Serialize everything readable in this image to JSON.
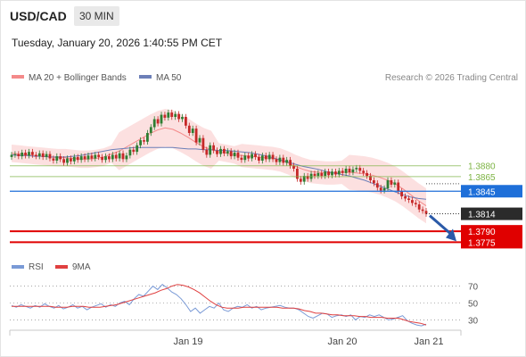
{
  "header": {
    "pair": "USD/CAD",
    "timeframe": "30 MIN",
    "timestamp": "Tuesday, January 20, 2026 1:40:55 PM CET"
  },
  "legend": {
    "ma20": "MA 20 + Bollinger Bands",
    "ma50": "MA 50",
    "source": "Research © 2026 Trading Central"
  },
  "rsi_legend": {
    "rsi": "RSI",
    "ma": "9MA"
  },
  "levels": [
    {
      "value": "1.3880",
      "color": "#7cb342",
      "style": "green-text"
    },
    {
      "value": "1.3865",
      "color": "#7cb342",
      "style": "green-text"
    },
    {
      "value": "1.3845",
      "color": "#1e6fd9",
      "style": "blue-box"
    },
    {
      "value": "1.3814",
      "color": "#2b2b2b",
      "style": "dark-box"
    },
    {
      "value": "1.3790",
      "color": "#e00000",
      "style": "red-box"
    },
    {
      "value": "1.3775",
      "color": "#e00000",
      "style": "red-box"
    }
  ],
  "x_labels": [
    "Jan 19",
    "Jan 20",
    "Jan 21"
  ],
  "rsi_levels": [
    "70",
    "50",
    "30"
  ],
  "colors": {
    "bull": "#2e7d32",
    "bear": "#c62828",
    "ma20": "#f48a8a",
    "ma50": "#6c7fb8",
    "band": "#fbd5d5",
    "arrow": "#2b5aa8",
    "rsi": "#7a9ad6",
    "rsi_ma": "#e04040"
  },
  "chart_data": [
    {
      "type": "candlestick",
      "title": "USD/CAD",
      "timeframe": "30 MIN",
      "ylim": [
        1.3762,
        1.3985
      ],
      "x_ticks": [
        "Jan 19",
        "Jan 20",
        "Jan 21"
      ],
      "series": [
        {
          "name": "USD/CAD",
          "close": [
            1.3895,
            1.3896,
            1.3893,
            1.3898,
            1.3894,
            1.3899,
            1.3895,
            1.3893,
            1.3897,
            1.3892,
            1.3896,
            1.389,
            1.3887,
            1.3893,
            1.3889,
            1.3884,
            1.389,
            1.3886,
            1.3892,
            1.3888,
            1.3893,
            1.3889,
            1.3894,
            1.389,
            1.3895,
            1.3892,
            1.3888,
            1.3893,
            1.3889,
            1.3895,
            1.389,
            1.3897,
            1.3889,
            1.3894,
            1.3902,
            1.3899,
            1.3908,
            1.3915,
            1.3913,
            1.3925,
            1.3933,
            1.3944,
            1.3938,
            1.395,
            1.3946,
            1.3953,
            1.3947,
            1.3951,
            1.3944,
            1.3947,
            1.3935,
            1.3925,
            1.3931,
            1.3912,
            1.3918,
            1.3902,
            1.3895,
            1.3908,
            1.3901,
            1.3896,
            1.3903,
            1.3897,
            1.39,
            1.3893,
            1.3898,
            1.3891,
            1.3888,
            1.3894,
            1.389,
            1.3896,
            1.3892,
            1.3887,
            1.3894,
            1.3889,
            1.3895,
            1.3889,
            1.3885,
            1.3891,
            1.3884,
            1.3888,
            1.388,
            1.3876,
            1.3862,
            1.3858,
            1.3866,
            1.3862,
            1.3869,
            1.3866,
            1.387,
            1.3866,
            1.3872,
            1.3867,
            1.3872,
            1.3868,
            1.3873,
            1.387,
            1.3876,
            1.3871,
            1.3875,
            1.3877,
            1.3873,
            1.387,
            1.3866,
            1.386,
            1.3856,
            1.385,
            1.3846,
            1.3849,
            1.386,
            1.3854,
            1.3857,
            1.3845,
            1.3838,
            1.3835,
            1.3833,
            1.3829,
            1.3827,
            1.382,
            1.3818,
            1.3814
          ]
        }
      ],
      "ma20": [
        1.3897,
        1.3896,
        1.3895,
        1.3894,
        1.3893,
        1.3892,
        1.3891,
        1.3891,
        1.389,
        1.3889,
        1.3889,
        1.389,
        1.3892,
        1.3896,
        1.39,
        1.3906,
        1.3912,
        1.3918,
        1.3924,
        1.3929,
        1.3932,
        1.393,
        1.3925,
        1.3919,
        1.3912,
        1.3906,
        1.3902,
        1.3899,
        1.3897,
        1.3895,
        1.3894,
        1.3893,
        1.3892,
        1.3891,
        1.389,
        1.3888,
        1.3884,
        1.3879,
        1.3875,
        1.3872,
        1.3871,
        1.387,
        1.387,
        1.3871,
        1.3871,
        1.387,
        1.3869,
        1.3867,
        1.3864,
        1.386,
        1.3855,
        1.3848,
        1.384,
        1.3832,
        1.3825
      ],
      "ma50": [
        1.3895,
        1.3894,
        1.3894,
        1.3893,
        1.3893,
        1.3892,
        1.3892,
        1.3892,
        1.3893,
        1.3894,
        1.3896,
        1.3898,
        1.39,
        1.3902,
        1.3903,
        1.3904,
        1.3905,
        1.3905,
        1.3905,
        1.3905,
        1.3905,
        1.3905,
        1.3904,
        1.3903,
        1.3903,
        1.3902,
        1.3902,
        1.3901,
        1.3901,
        1.39,
        1.3899,
        1.3898,
        1.3896,
        1.3894,
        1.3891,
        1.3888,
        1.3885,
        1.3882,
        1.3879,
        1.3877,
        1.3875,
        1.3872,
        1.387,
        1.3868,
        1.3866,
        1.3863,
        1.386,
        1.3856,
        1.3852,
        1.3848,
        1.3844,
        1.384,
        1.3837,
        1.3835,
        1.3834
      ],
      "levels": [
        1.388,
        1.3865,
        1.3845,
        1.3814,
        1.379,
        1.3775
      ]
    },
    {
      "type": "line",
      "title": "RSI",
      "ylim": [
        22,
        78
      ],
      "y_ticks": [
        70,
        50,
        30
      ],
      "series": [
        {
          "name": "RSI",
          "values": [
            47,
            45,
            48,
            46,
            44,
            47,
            45,
            49,
            46,
            44,
            47,
            43,
            45,
            48,
            44,
            46,
            42,
            45,
            47,
            49,
            45,
            48,
            46,
            50,
            52,
            48,
            55,
            60,
            58,
            64,
            70,
            66,
            72,
            68,
            63,
            60,
            55,
            48,
            40,
            44,
            38,
            42,
            46,
            44,
            50,
            42,
            40,
            44,
            46,
            45,
            48,
            44,
            46,
            42,
            44,
            45,
            46,
            47,
            45,
            44,
            44,
            42,
            38,
            34,
            32,
            35,
            38,
            37,
            33,
            35,
            36,
            34,
            36,
            30,
            34,
            33,
            36,
            34,
            36,
            33,
            30,
            31,
            33,
            35,
            29,
            26,
            24,
            23,
            25
          ]
        },
        {
          "name": "9MA",
          "values": [
            46,
            46,
            46,
            46,
            46,
            46,
            46,
            46,
            45,
            45,
            45,
            46,
            46,
            46,
            45,
            45,
            45,
            46,
            47,
            48,
            50,
            52,
            54,
            56,
            58,
            60,
            62,
            65,
            67,
            70,
            72,
            71,
            69,
            66,
            62,
            57,
            52,
            48,
            45,
            44,
            44,
            44,
            45,
            45,
            45,
            45,
            45,
            45,
            45,
            44,
            44,
            44,
            43,
            41,
            40,
            38,
            38,
            37,
            36,
            36,
            35,
            35,
            35,
            34,
            34,
            33,
            33,
            33,
            32,
            32,
            32,
            30,
            28,
            27,
            26,
            24
          ]
        }
      ]
    }
  ]
}
